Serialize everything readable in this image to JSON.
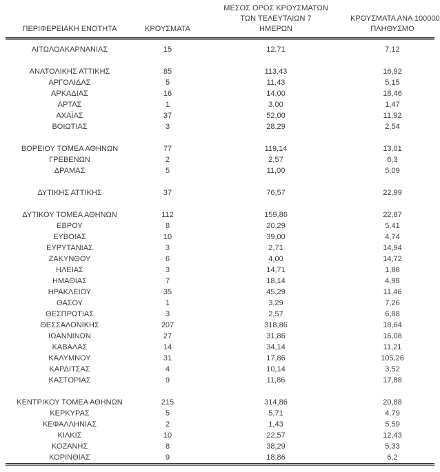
{
  "table": {
    "headers": {
      "region": "ΠΕΡΙΦΕΡΕΙΑΚΗ ΕΝΟΤΗΤΑ",
      "cases": "ΚΡΟΥΣΜΑΤΑ",
      "avg7": "ΜΕΣΟΣ ΟΡΟΣ ΚΡΟΥΣΜΑΤΩΝ\nΤΩΝ ΤΕΛΕΥΤΑΙΩΝ 7\nΗΜΕΡΩΝ",
      "per100k": "ΚΡΟΥΣΜΑΤΑ ΑΝΑ 100000\nΠΛΗΘΥΣΜΟ"
    },
    "text_color": "#3c3c3c",
    "rule_color": "#3f3f3f",
    "rows": [
      {
        "region": "ΑΙΤΩΛΟΑΚΑΡΝΑΝΙΑΣ",
        "cases": "15",
        "avg7": "12,71",
        "per100k": "7,12"
      },
      {
        "blank": true
      },
      {
        "region": "ΑΝΑΤΟΛΙΚΗΣ ΑΤΤΙΚΗΣ",
        "cases": "85",
        "avg7": "113,43",
        "per100k": "16,92"
      },
      {
        "region": "ΑΡΓΟΛΙΔΑΣ",
        "cases": "5",
        "avg7": "11,43",
        "per100k": "5,15"
      },
      {
        "region": "ΑΡΚΑΔΙΑΣ",
        "cases": "16",
        "avg7": "14,00",
        "per100k": "18,46"
      },
      {
        "region": "ΑΡΤΑΣ",
        "cases": "1",
        "avg7": "3,00",
        "per100k": "1,47"
      },
      {
        "region": "ΑΧΑΪΑΣ",
        "cases": "37",
        "avg7": "52,00",
        "per100k": "11,92"
      },
      {
        "region": "ΒΟΙΩΤΙΑΣ",
        "cases": "3",
        "avg7": "28,29",
        "per100k": "2,54"
      },
      {
        "blank": true
      },
      {
        "region": "ΒΟΡΕΙΟΥ ΤΟΜΕΑ ΑΘΗΝΩΝ",
        "cases": "77",
        "avg7": "119,14",
        "per100k": "13,01"
      },
      {
        "region": "ΓΡΕΒΕΝΩΝ",
        "cases": "2",
        "avg7": "2,57",
        "per100k": "6,3"
      },
      {
        "region": "ΔΡΑΜΑΣ",
        "cases": "5",
        "avg7": "11,00",
        "per100k": "5,09"
      },
      {
        "blank": true
      },
      {
        "region": "ΔΥΤΙΚΗΣ ΑΤΤΙΚΗΣ",
        "cases": "37",
        "avg7": "76,57",
        "per100k": "22,99"
      },
      {
        "blank": true
      },
      {
        "region": "ΔΥΤΙΚΟΥ ΤΟΜΕΑ ΑΘΗΝΩΝ",
        "cases": "112",
        "avg7": "159,86",
        "per100k": "22,87"
      },
      {
        "region": "ΕΒΡΟΥ",
        "cases": "8",
        "avg7": "20,29",
        "per100k": "5,41"
      },
      {
        "region": "ΕΥΒΟΙΑΣ",
        "cases": "10",
        "avg7": "39,00",
        "per100k": "4,74"
      },
      {
        "region": "ΕΥΡΥΤΑΝΙΑΣ",
        "cases": "3",
        "avg7": "2,71",
        "per100k": "14,94"
      },
      {
        "region": "ΖΑΚΥΝΘΟΥ",
        "cases": "6",
        "avg7": "4,00",
        "per100k": "14,72"
      },
      {
        "region": "ΗΛΕΙΑΣ",
        "cases": "3",
        "avg7": "14,71",
        "per100k": "1,88"
      },
      {
        "region": "ΗΜΑΘΙΑΣ",
        "cases": "7",
        "avg7": "18,14",
        "per100k": "4,98"
      },
      {
        "region": "ΗΡΑΚΛΕΙΟΥ",
        "cases": "35",
        "avg7": "45,29",
        "per100k": "11,46"
      },
      {
        "region": "ΘΑΣΟΥ",
        "cases": "1",
        "avg7": "3,29",
        "per100k": "7,26"
      },
      {
        "region": "ΘΕΣΠΡΩΤΙΑΣ",
        "cases": "3",
        "avg7": "2,57",
        "per100k": "6,88"
      },
      {
        "region": "ΘΕΣΣΑΛΟΝΙΚΗΣ",
        "cases": "207",
        "avg7": "318,86",
        "per100k": "18,64"
      },
      {
        "region": "ΙΩΑΝΝΙΝΩΝ",
        "cases": "27",
        "avg7": "31,86",
        "per100k": "16,08"
      },
      {
        "region": "ΚΑΒΑΛΑΣ",
        "cases": "14",
        "avg7": "34,14",
        "per100k": "11,21"
      },
      {
        "region": "ΚΑΛΥΜΝΟΥ",
        "cases": "31",
        "avg7": "17,86",
        "per100k": "105,26"
      },
      {
        "region": "ΚΑΡΔΙΤΣΑΣ",
        "cases": "4",
        "avg7": "10,14",
        "per100k": "3,52"
      },
      {
        "region": "ΚΑΣΤΟΡΙΑΣ",
        "cases": "9",
        "avg7": "11,86",
        "per100k": "17,88"
      },
      {
        "blank": true
      },
      {
        "region": "ΚΕΝΤΡΙΚΟΥ ΤΟΜΕΑ ΑΘΗΝΩΝ",
        "cases": "215",
        "avg7": "314,86",
        "per100k": "20,88"
      },
      {
        "region": "ΚΕΡΚΥΡΑΣ",
        "cases": "5",
        "avg7": "5,71",
        "per100k": "4,79"
      },
      {
        "region": "ΚΕΦΑΛΛΗΝΙΑΣ",
        "cases": "2",
        "avg7": "1,43",
        "per100k": "5,59"
      },
      {
        "region": "ΚΙΛΚΙΣ",
        "cases": "10",
        "avg7": "22,57",
        "per100k": "12,43"
      },
      {
        "region": "ΚΟΖΑΝΗΣ",
        "cases": "8",
        "avg7": "38,29",
        "per100k": "5,33"
      },
      {
        "region": "ΚΟΡΙΝΘΙΑΣ",
        "cases": "9",
        "avg7": "18,86",
        "per100k": "6,2"
      }
    ]
  }
}
